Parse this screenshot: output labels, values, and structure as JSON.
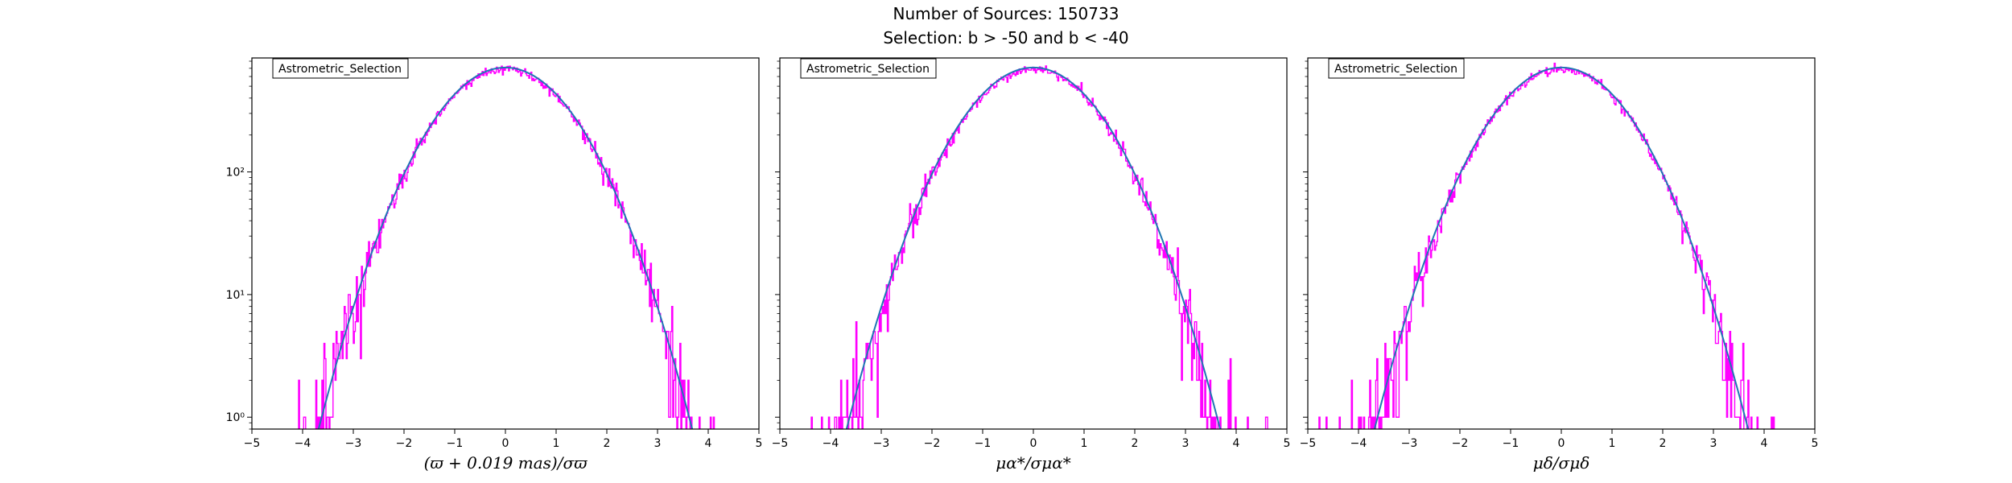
{
  "figure": {
    "title_line1": "Number of Sources: 150733",
    "title_line2": "Selection: b > -50 and b < -40"
  },
  "colors": {
    "histogram": "#ff00ff",
    "fit_curve": "#1f77b4",
    "axes": "#000000",
    "legend_border": "#000000"
  },
  "chart_data": [
    {
      "type": "line",
      "title": "",
      "xlabel": "(ϖ + 0.019 mas)/σϖ",
      "ylabel": "",
      "yscale": "log",
      "xlim": [
        -5,
        5
      ],
      "ylim": [
        0.8,
        850
      ],
      "xticks": [
        "−5",
        "−4",
        "−3",
        "−2",
        "−1",
        "0",
        "1",
        "2",
        "3",
        "4",
        "5"
      ],
      "yticks": [
        {
          "value": 1,
          "label": "10⁰"
        },
        {
          "value": 10,
          "label": "10¹"
        },
        {
          "value": 100,
          "label": "10²"
        }
      ],
      "legend": "Astrometric_Selection",
      "legend_loc": "upper-left",
      "series": [
        {
          "name": "Astrometric_Selection histogram",
          "style": "step",
          "x_range": [
            -5,
            5
          ],
          "bin_width": 0.02,
          "peak": 690,
          "sigma": 1.0
        },
        {
          "name": "Gaussian fit",
          "style": "line",
          "x_range": [
            -5,
            5
          ],
          "peak": 710,
          "sigma": 1.0
        }
      ]
    },
    {
      "type": "line",
      "title": "",
      "xlabel": "μα*/σμα*",
      "ylabel": "",
      "yscale": "log",
      "xlim": [
        -5,
        5
      ],
      "ylim": [
        0.8,
        850
      ],
      "xticks": [
        "−5",
        "−4",
        "−3",
        "−2",
        "−1",
        "0",
        "1",
        "2",
        "3",
        "4",
        "5"
      ],
      "yticks": [
        {
          "value": 1,
          "label": ""
        },
        {
          "value": 10,
          "label": ""
        },
        {
          "value": 100,
          "label": ""
        }
      ],
      "legend": "Astrometric_Selection",
      "legend_loc": "upper-left",
      "series": [
        {
          "name": "Astrometric_Selection histogram",
          "style": "step",
          "x_range": [
            -5,
            5
          ],
          "bin_width": 0.02,
          "peak": 690,
          "sigma": 1.0
        },
        {
          "name": "Gaussian fit",
          "style": "line",
          "x_range": [
            -5,
            5
          ],
          "peak": 710,
          "sigma": 1.0
        }
      ]
    },
    {
      "type": "line",
      "title": "",
      "xlabel": "μδ/σμδ",
      "ylabel": "",
      "yscale": "log",
      "xlim": [
        -5,
        5
      ],
      "ylim": [
        0.8,
        850
      ],
      "xticks": [
        "−5",
        "−4",
        "−3",
        "−2",
        "−1",
        "0",
        "1",
        "2",
        "3",
        "4",
        "5"
      ],
      "yticks": [
        {
          "value": 1,
          "label": ""
        },
        {
          "value": 10,
          "label": ""
        },
        {
          "value": 100,
          "label": ""
        }
      ],
      "legend": "Astrometric_Selection",
      "legend_loc": "upper-left",
      "series": [
        {
          "name": "Astrometric_Selection histogram",
          "style": "step",
          "x_range": [
            -5,
            5
          ],
          "bin_width": 0.02,
          "peak": 690,
          "sigma": 1.0
        },
        {
          "name": "Gaussian fit",
          "style": "line",
          "x_range": [
            -5,
            5
          ],
          "peak": 710,
          "sigma": 1.0
        }
      ]
    }
  ]
}
